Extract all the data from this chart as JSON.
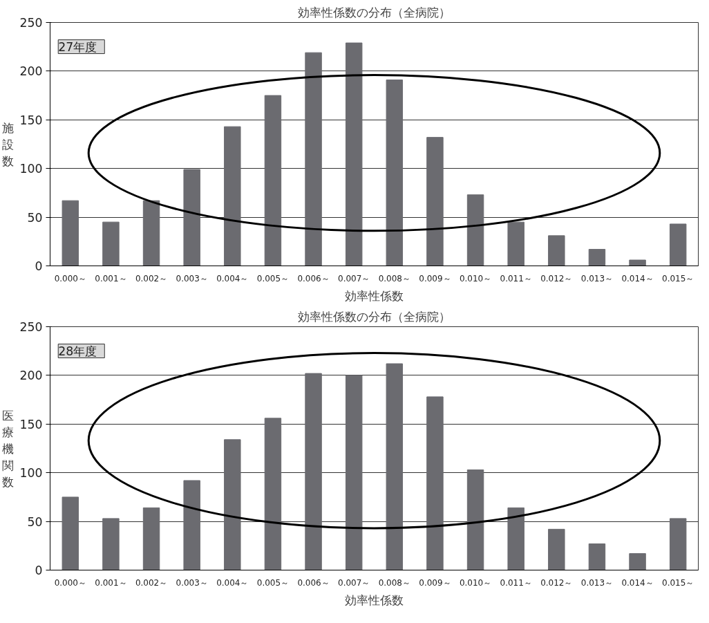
{
  "chart_data": [
    {
      "type": "bar",
      "title": "効率性係数の分布（全病院）",
      "xlabel": "効率性係数",
      "ylabel": "施設数",
      "categories": [
        "0.000～",
        "0.001～",
        "0.002～",
        "0.003～",
        "0.004～",
        "0.005～",
        "0.006～",
        "0.007～",
        "0.008～",
        "0.009～",
        "0.010～",
        "0.011～",
        "0.012～",
        "0.013～",
        "0.014～",
        "0.015～"
      ],
      "values": [
        67,
        45,
        67,
        99,
        143,
        175,
        219,
        229,
        191,
        132,
        73,
        45,
        31,
        17,
        6,
        43
      ],
      "color": "#6b6b70",
      "ylim": [
        0,
        250
      ],
      "yticks": [
        0,
        50,
        100,
        150,
        200,
        250
      ],
      "grid": "y",
      "annotations": [
        "27年度"
      ]
    },
    {
      "type": "bar",
      "title": "効率性係数の分布（全病院）",
      "xlabel": "効率性係数",
      "ylabel": "医療機関数",
      "categories": [
        "0.000～",
        "0.001～",
        "0.002～",
        "0.003～",
        "0.004～",
        "0.005～",
        "0.006～",
        "0.007～",
        "0.008～",
        "0.009～",
        "0.010～",
        "0.011～",
        "0.012～",
        "0.013～",
        "0.014～",
        "0.015～"
      ],
      "values": [
        75,
        53,
        64,
        92,
        134,
        156,
        202,
        200,
        212,
        178,
        103,
        64,
        42,
        27,
        17,
        53
      ],
      "color": "#6b6b70",
      "ylim": [
        0,
        250
      ],
      "yticks": [
        0,
        50,
        100,
        150,
        200,
        250
      ],
      "grid": "y",
      "annotations": [
        "28年度"
      ]
    }
  ]
}
